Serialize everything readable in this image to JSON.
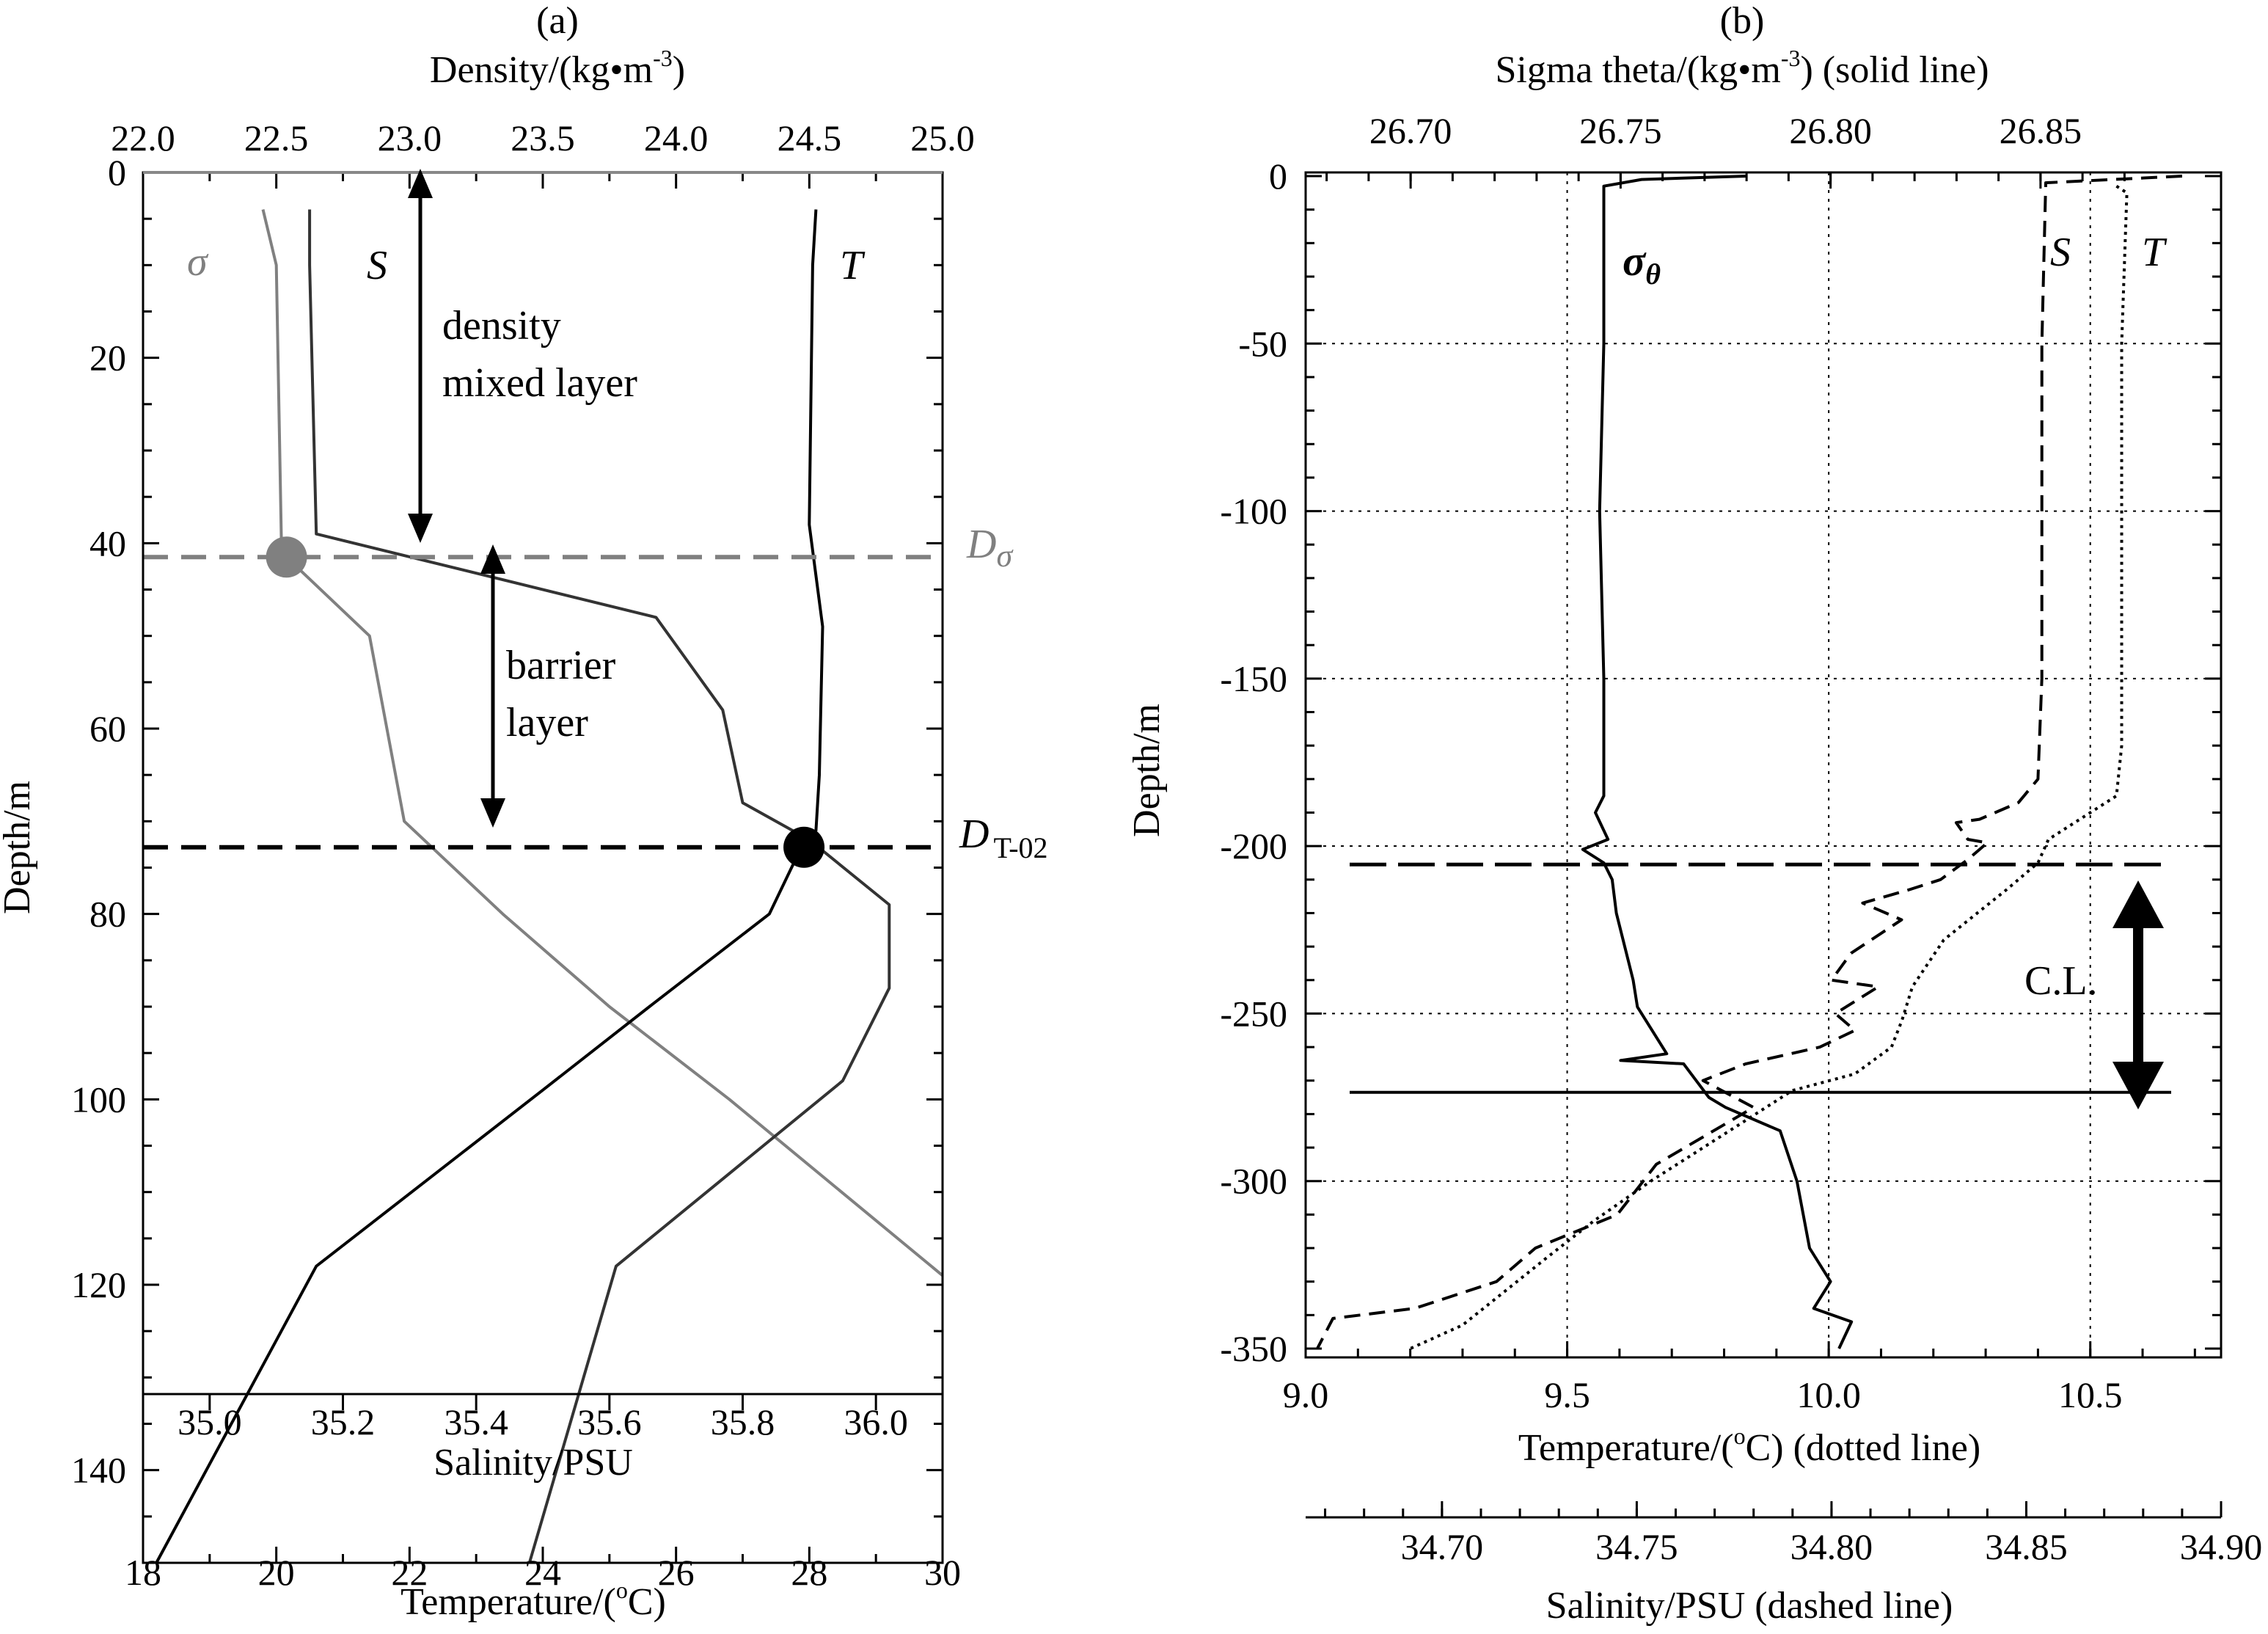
{
  "chart_data": [
    {
      "panel_label": "(a)",
      "type": "line",
      "top_axis": {
        "label": "Density/(kg•m",
        "label_sup": "-3",
        "label_end": ")",
        "range": [
          22.0,
          25.0
        ],
        "ticks": [
          "22.0",
          "22.5",
          "23.0",
          "23.5",
          "24.0",
          "24.5",
          "25.0"
        ]
      },
      "y_axis": {
        "label": "Depth/m",
        "range": [
          0,
          150
        ],
        "ticks": [
          "0",
          "20",
          "40",
          "60",
          "80",
          "100",
          "120",
          "140"
        ]
      },
      "inner_axis": {
        "label": "Salinity/PSU",
        "range": [
          34.9,
          36.1
        ],
        "ticks": [
          "35.0",
          "35.2",
          "35.4",
          "35.6",
          "35.8",
          "36.0"
        ]
      },
      "bottom_axis": {
        "label": "Temperature/(",
        "label_sup": "o",
        "label_end": "C)",
        "range": [
          18,
          30
        ],
        "ticks": [
          "18",
          "20",
          "22",
          "24",
          "26",
          "28",
          "30"
        ]
      },
      "series": [
        {
          "name": "σ",
          "axis": "density",
          "color": "#808080",
          "points": [
            [
              22.45,
              4
            ],
            [
              22.5,
              10
            ],
            [
              22.52,
              41
            ],
            [
              22.85,
              50
            ],
            [
              22.98,
              70
            ],
            [
              23.35,
              80
            ],
            [
              23.75,
              90
            ],
            [
              24.2,
              100
            ],
            [
              25.0,
              119
            ]
          ]
        },
        {
          "name": "S",
          "axis": "salinity",
          "color": "#333333",
          "points": [
            [
              35.15,
              4
            ],
            [
              35.15,
              10
            ],
            [
              35.16,
              39
            ],
            [
              35.67,
              48
            ],
            [
              35.77,
              58
            ],
            [
              35.8,
              68
            ],
            [
              35.9,
              72
            ],
            [
              36.02,
              79
            ],
            [
              36.02,
              88
            ],
            [
              35.95,
              98
            ],
            [
              35.61,
              118
            ],
            [
              35.48,
              150
            ]
          ]
        },
        {
          "name": "T",
          "axis": "temperature",
          "color": "#000000",
          "points": [
            [
              28.1,
              4
            ],
            [
              28.05,
              10
            ],
            [
              28.0,
              38
            ],
            [
              28.2,
              49
            ],
            [
              28.15,
              65
            ],
            [
              28.1,
              71
            ],
            [
              27.8,
              74
            ],
            [
              27.4,
              80
            ],
            [
              25.6,
              90
            ],
            [
              24.0,
              99
            ],
            [
              20.6,
              118
            ],
            [
              18.2,
              150
            ]
          ]
        }
      ],
      "series_labels": [
        "σ",
        "S",
        "T"
      ],
      "reference_lines": [
        {
          "name": "D",
          "sub": "σ",
          "depth": 41.5,
          "color": "#808080"
        },
        {
          "name": "D",
          "sub": "T-02",
          "depth": 72.8,
          "color": "#000000"
        }
      ],
      "markers": [
        {
          "series": "σ",
          "depth": 41.5
        },
        {
          "series": "T",
          "depth": 72.8
        }
      ],
      "annotations": [
        "density",
        "mixed layer",
        "barrier",
        "layer"
      ]
    },
    {
      "panel_label": "(b)",
      "type": "line",
      "top_axis": {
        "label": "Sigma theta/(kg•m",
        "label_sup": "-3",
        "label_end": ")  (solid line)",
        "range": [
          26.675,
          26.875
        ],
        "ticks": [
          "26.70",
          "26.75",
          "26.80",
          "26.85"
        ]
      },
      "y_axis": {
        "label": "Depth/m",
        "range": [
          -350,
          0
        ],
        "ticks": [
          "0",
          "-50",
          "-100",
          "-150",
          "-200",
          "-250",
          "-300",
          "-350"
        ]
      },
      "bottom_axis": {
        "label": "Temperature/(",
        "label_sup": "o",
        "label_end": "C) (dotted line)",
        "range": [
          9.0,
          10.75
        ],
        "ticks": [
          "9.0",
          "9.5",
          "10.0",
          "10.5"
        ]
      },
      "salinity_axis": {
        "label": "Salinity/PSU (dashed line)",
        "range": [
          34.665,
          34.9
        ],
        "ticks": [
          "34.70",
          "34.75",
          "34.80",
          "34.85",
          "34.90"
        ]
      },
      "series": [
        {
          "name": "σθ",
          "axis": "sigma",
          "style": "solid",
          "points": [
            [
              26.78,
              0
            ],
            [
              26.755,
              1
            ],
            [
              26.746,
              3
            ],
            [
              26.746,
              50
            ],
            [
              26.745,
              100
            ],
            [
              26.746,
              150
            ],
            [
              26.746,
              185
            ],
            [
              26.744,
              190
            ],
            [
              26.747,
              198
            ],
            [
              26.741,
              201
            ],
            [
              26.746,
              205
            ],
            [
              26.748,
              210
            ],
            [
              26.749,
              220
            ],
            [
              26.753,
              240
            ],
            [
              26.754,
              248
            ],
            [
              26.761,
              262
            ],
            [
              26.75,
              264
            ],
            [
              26.765,
              265
            ],
            [
              26.771,
              275
            ],
            [
              26.775,
              278
            ],
            [
              26.788,
              285
            ],
            [
              26.792,
              300
            ],
            [
              26.795,
              320
            ],
            [
              26.8,
              330
            ],
            [
              26.796,
              338
            ],
            [
              26.805,
              342
            ],
            [
              26.802,
              350
            ]
          ]
        },
        {
          "name": "S",
          "axis": "salinity",
          "style": "dashed",
          "points": [
            [
              34.89,
              0
            ],
            [
              34.855,
              2
            ],
            [
              34.854,
              50
            ],
            [
              34.854,
              100
            ],
            [
              34.854,
              150
            ],
            [
              34.853,
              180
            ],
            [
              34.848,
              187
            ],
            [
              34.842,
              190
            ],
            [
              34.838,
              192
            ],
            [
              34.832,
              193
            ],
            [
              34.835,
              198
            ],
            [
              34.84,
              199
            ],
            [
              34.835,
              204
            ],
            [
              34.828,
              210
            ],
            [
              34.82,
              213
            ],
            [
              34.808,
              217
            ],
            [
              34.818,
              222
            ],
            [
              34.805,
              232
            ],
            [
              34.8,
              240
            ],
            [
              34.812,
              242
            ],
            [
              34.801,
              250
            ],
            [
              34.806,
              255
            ],
            [
              34.797,
              260
            ],
            [
              34.778,
              265
            ],
            [
              34.767,
              270
            ],
            [
              34.78,
              278
            ],
            [
              34.755,
              295
            ],
            [
              34.745,
              310
            ],
            [
              34.724,
              320
            ],
            [
              34.714,
              330
            ],
            [
              34.693,
              338
            ],
            [
              34.672,
              341
            ],
            [
              34.668,
              350
            ]
          ]
        },
        {
          "name": "T",
          "axis": "temperature",
          "style": "dotted",
          "points": [
            [
              10.55,
              3
            ],
            [
              10.57,
              5
            ],
            [
              10.56,
              50
            ],
            [
              10.56,
              100
            ],
            [
              10.56,
              150
            ],
            [
              10.56,
              170
            ],
            [
              10.55,
              185
            ],
            [
              10.5,
              190
            ],
            [
              10.42,
              198
            ],
            [
              10.4,
              205
            ],
            [
              10.34,
              213
            ],
            [
              10.22,
              228
            ],
            [
              10.16,
              242
            ],
            [
              10.14,
              252
            ],
            [
              10.12,
              260
            ],
            [
              10.05,
              268
            ],
            [
              9.93,
              273
            ],
            [
              9.88,
              278
            ],
            [
              9.76,
              290
            ],
            [
              9.66,
              300
            ],
            [
              9.55,
              312
            ],
            [
              9.46,
              323
            ],
            [
              9.38,
              333
            ],
            [
              9.3,
              343
            ],
            [
              9.2,
              350
            ]
          ]
        }
      ],
      "series_labels": [
        "σ",
        "θ",
        "S",
        "T"
      ],
      "reference_lines": [
        {
          "style": "dashed",
          "depth": 205.5
        },
        {
          "style": "solid",
          "depth": 273.5
        }
      ],
      "annotations": [
        "C.L."
      ]
    }
  ]
}
